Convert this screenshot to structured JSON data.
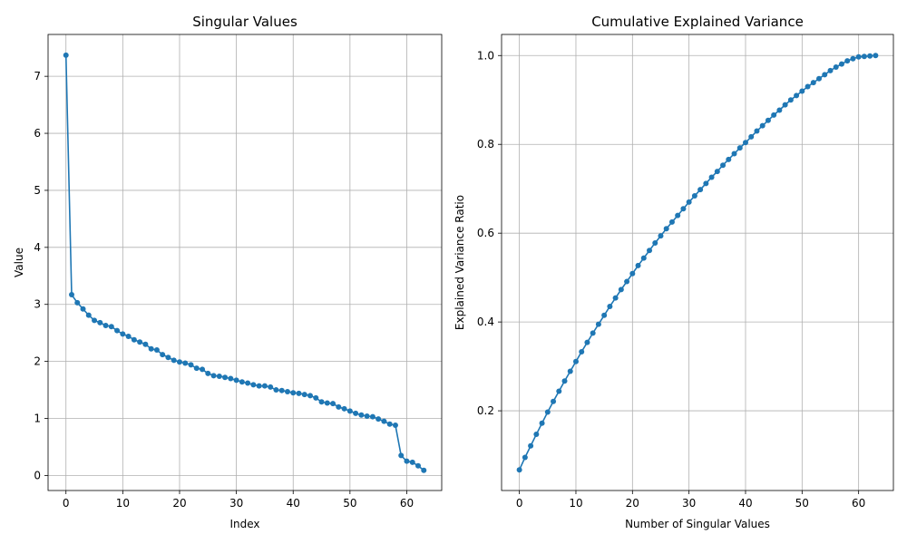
{
  "chart_data": [
    {
      "type": "line",
      "title": "Singular Values",
      "xlabel": "Index",
      "ylabel": "Value",
      "xlim": [
        -3.15,
        66.15
      ],
      "ylim": [
        -0.264,
        7.734
      ],
      "xticks": [
        0,
        10,
        20,
        30,
        40,
        50,
        60
      ],
      "yticks": [
        0,
        1,
        2,
        3,
        4,
        5,
        6,
        7
      ],
      "grid": true,
      "markers": true,
      "color": "#1f77b4",
      "series": [
        {
          "x": [
            0,
            1,
            2,
            3,
            4,
            5,
            6,
            7,
            8,
            9,
            10,
            11,
            12,
            13,
            14,
            15,
            16,
            17,
            18,
            19,
            20,
            21,
            22,
            23,
            24,
            25,
            26,
            27,
            28,
            29,
            30,
            31,
            32,
            33,
            34,
            35,
            36,
            37,
            38,
            39,
            40,
            41,
            42,
            43,
            44,
            45,
            46,
            47,
            48,
            49,
            50,
            51,
            52,
            53,
            54,
            55,
            56,
            57,
            58,
            59,
            60,
            61,
            62,
            63
          ],
          "values": [
            7.37,
            3.17,
            3.03,
            2.92,
            2.81,
            2.72,
            2.68,
            2.63,
            2.61,
            2.54,
            2.48,
            2.44,
            2.38,
            2.34,
            2.3,
            2.22,
            2.2,
            2.12,
            2.07,
            2.02,
            1.99,
            1.97,
            1.94,
            1.88,
            1.86,
            1.79,
            1.75,
            1.74,
            1.72,
            1.7,
            1.67,
            1.64,
            1.62,
            1.59,
            1.57,
            1.57,
            1.55,
            1.5,
            1.49,
            1.47,
            1.45,
            1.44,
            1.42,
            1.4,
            1.36,
            1.29,
            1.27,
            1.26,
            1.2,
            1.17,
            1.13,
            1.09,
            1.06,
            1.04,
            1.03,
            0.99,
            0.95,
            0.9,
            0.88,
            0.35,
            0.25,
            0.23,
            0.17,
            0.09
          ]
        }
      ]
    },
    {
      "type": "line",
      "title": "Cumulative Explained Variance",
      "xlabel": "Number of Singular Values",
      "ylabel": "Explained Variance Ratio",
      "xlim": [
        -3.15,
        66.15
      ],
      "ylim": [
        0.0205,
        1.0475
      ],
      "xticks": [
        0,
        10,
        20,
        30,
        40,
        50,
        60
      ],
      "yticks": [
        0.2,
        0.4,
        0.6,
        0.8,
        1.0
      ],
      "grid": true,
      "markers": true,
      "color": "#1f77b4",
      "series": [
        {
          "x": [
            0,
            1,
            2,
            3,
            4,
            5,
            6,
            7,
            8,
            9,
            10,
            11,
            12,
            13,
            14,
            15,
            16,
            17,
            18,
            19,
            20,
            21,
            22,
            23,
            24,
            25,
            26,
            27,
            28,
            29,
            30,
            31,
            32,
            33,
            34,
            35,
            36,
            37,
            38,
            39,
            40,
            41,
            42,
            43,
            44,
            45,
            46,
            47,
            48,
            49,
            50,
            51,
            52,
            53,
            54,
            55,
            56,
            57,
            58,
            59,
            60,
            61,
            62,
            63
          ],
          "values": [
            0.067,
            0.095,
            0.121,
            0.147,
            0.172,
            0.197,
            0.221,
            0.244,
            0.267,
            0.289,
            0.311,
            0.333,
            0.354,
            0.375,
            0.395,
            0.415,
            0.435,
            0.454,
            0.473,
            0.491,
            0.509,
            0.527,
            0.544,
            0.561,
            0.578,
            0.594,
            0.61,
            0.625,
            0.64,
            0.655,
            0.67,
            0.684,
            0.698,
            0.712,
            0.726,
            0.739,
            0.753,
            0.766,
            0.779,
            0.792,
            0.804,
            0.817,
            0.83,
            0.842,
            0.854,
            0.866,
            0.877,
            0.889,
            0.9,
            0.91,
            0.92,
            0.93,
            0.939,
            0.948,
            0.957,
            0.966,
            0.974,
            0.981,
            0.988,
            0.993,
            0.997,
            0.998,
            0.999,
            1.0
          ]
        }
      ]
    }
  ]
}
